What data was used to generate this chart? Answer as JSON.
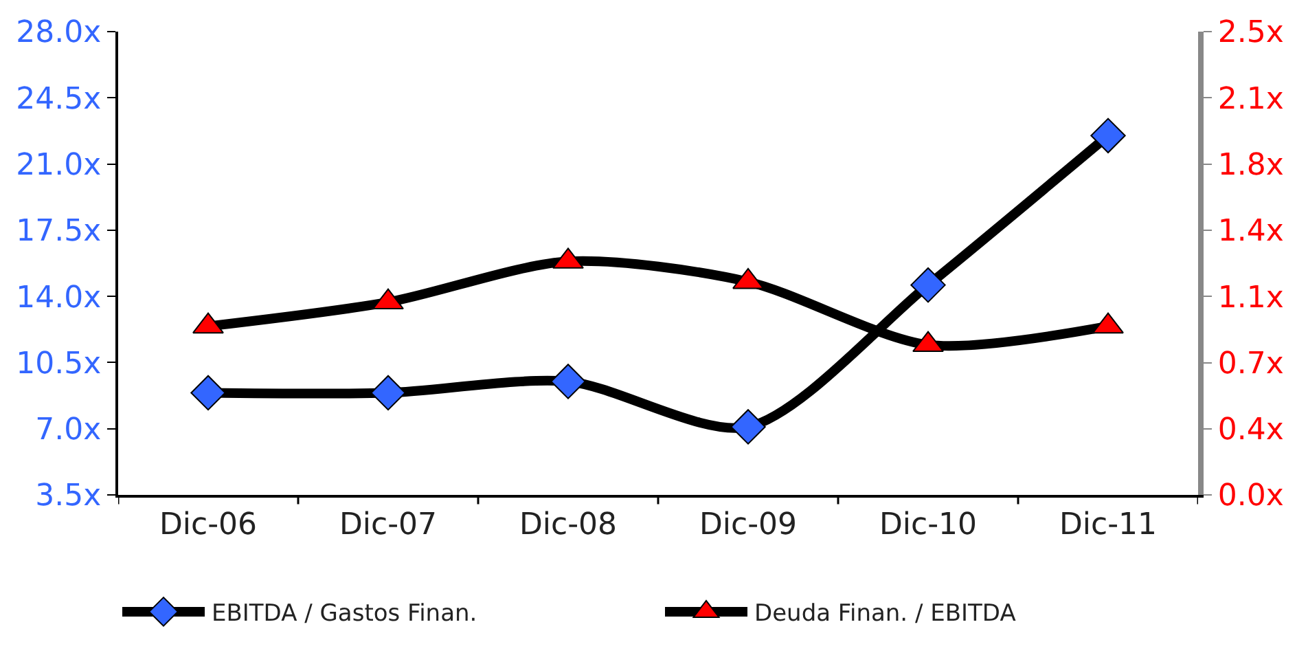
{
  "chart_data": {
    "type": "line",
    "categories": [
      "Dic-06",
      "Dic-07",
      "Dic-08",
      "Dic-09",
      "Dic-10",
      "Dic-11"
    ],
    "series": [
      {
        "name": "EBITDA / Gastos Finan.",
        "color": "#000000",
        "colors": [
          "#3366ff",
          "#3366ff",
          "#3366ff",
          "#3366ff",
          "#3366ff",
          "#3366ff"
        ],
        "marker": "diamond",
        "values": [
          8.9,
          8.9,
          9.5,
          7.1,
          14.6,
          22.5
        ]
      },
      {
        "name": "Deuda Finan. / EBITDA",
        "color": "#000000",
        "colors": [
          "#ff0000",
          "#ff0000",
          "#ff0000",
          "#ff0000",
          "#ff0000",
          "#ff0000"
        ],
        "marker": "triangle",
        "axis": "y2",
        "values": [
          0.91,
          1.04,
          1.26,
          1.15,
          0.81,
          0.91
        ]
      }
    ],
    "ylim": [
      3.5,
      28.0
    ],
    "yticks": [
      {
        "value": 3.5,
        "label": "3.5x"
      },
      {
        "value": 7.0,
        "label": "7.0x"
      },
      {
        "value": 10.5,
        "label": "10.5x"
      },
      {
        "value": 14.0,
        "label": "14.0x"
      },
      {
        "value": 17.5,
        "label": "17.5x"
      },
      {
        "value": 21.0,
        "label": "21.0x"
      },
      {
        "value": 24.5,
        "label": "24.5x"
      },
      {
        "value": 28.0,
        "label": "28.0x"
      }
    ],
    "y2lim": [
      0.0,
      2.5
    ],
    "y2ticks": [
      {
        "value": 0.0,
        "label": "0.0x"
      },
      {
        "value": 0.357,
        "label": "0.4x"
      },
      {
        "value": 0.714,
        "label": "0.7x"
      },
      {
        "value": 1.071,
        "label": "1.1x"
      },
      {
        "value": 1.429,
        "label": "1.4x"
      },
      {
        "value": 1.786,
        "label": "1.8x"
      },
      {
        "value": 2.143,
        "label": "2.1x"
      },
      {
        "value": 2.5,
        "label": "2.5x"
      }
    ],
    "legend": "bottom",
    "line_style": "solid"
  }
}
